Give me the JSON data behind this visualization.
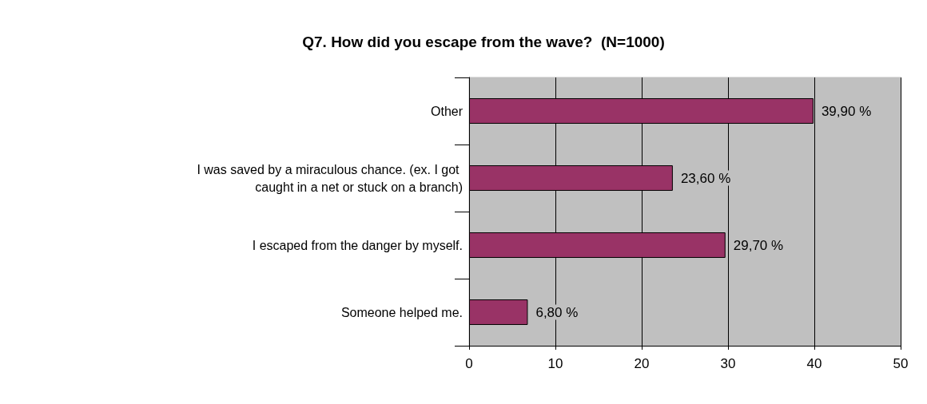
{
  "chart_data": {
    "type": "bar",
    "orientation": "horizontal",
    "title": "Q7. How did you escape from the wave?  (N=1000)",
    "categories": [
      "Other",
      "I was saved by a miraculous chance. (ex. I got caught in a net or stuck on a branch)",
      "I escaped from the danger by myself.",
      "Someone helped me."
    ],
    "values": [
      39.9,
      23.6,
      29.7,
      6.8
    ],
    "value_labels": [
      "39,90 %",
      "23,60 %",
      "29,70 %",
      "6,80 %"
    ],
    "color": "#993366",
    "xlim": [
      0,
      50
    ],
    "xticks": [
      0,
      10,
      20,
      30,
      40,
      50
    ],
    "grid": "x"
  }
}
